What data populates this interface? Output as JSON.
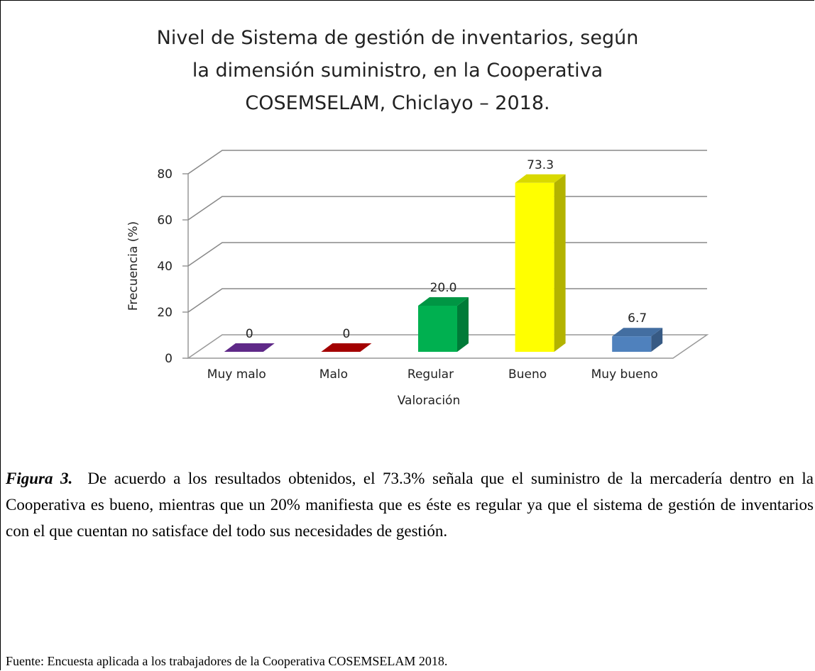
{
  "chart_data": {
    "type": "bar3d",
    "title": [
      "Nivel de Sistema de gestión de inventarios, según",
      "la dimensión suministro, en la Cooperativa",
      "COSEMSELAM, Chiclayo – 2018."
    ],
    "categories": [
      "Muy malo",
      "Malo",
      "Regular",
      "Bueno",
      "Muy bueno"
    ],
    "values": [
      0,
      0,
      20.0,
      73.3,
      6.7
    ],
    "value_labels": [
      "0",
      "0",
      "20.0",
      "73.3",
      "6.7"
    ],
    "colors": [
      "#7030a0",
      "#c00000",
      "#00b050",
      "#ffff00",
      "#4f81bd"
    ],
    "ylim": [
      0,
      80
    ],
    "yticks": [
      0,
      20,
      40,
      60,
      80
    ],
    "grid": true,
    "y_label": "Frecuencia (%)",
    "x_label": "Valoración"
  },
  "caption": {
    "label": "Figura 3.",
    "text": "De acuerdo a los resultados obtenidos, el 73.3% señala que el suministro de la mercadería dentro en la Cooperativa es bueno, mientras que un 20% manifiesta que es éste es regular ya que el sistema de gestión de inventarios con el que cuentan no satisface del todo sus necesidades de gestión."
  },
  "source": "Fuente: Encuesta aplicada a los trabajadores de la Cooperativa COSEMSELAM 2018."
}
